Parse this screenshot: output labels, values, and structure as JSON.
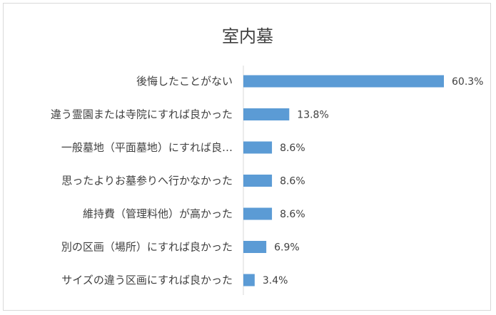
{
  "chart_data": {
    "type": "bar",
    "orientation": "horizontal",
    "title": "室内墓",
    "categories": [
      "後悔したことがない",
      "違う霊園または寺院にすれば良かった",
      "一般墓地（平面墓地）にすれば良…",
      "思ったよりお墓参りへ行かなかった",
      "維持費（管理料他）が高かった",
      "別の区画（場所）にすれば良かった",
      "サイズの違う区画にすれば良かった"
    ],
    "values": [
      60.3,
      13.8,
      8.6,
      8.6,
      8.6,
      6.9,
      3.4
    ],
    "value_labels": [
      "60.3%",
      "13.8%",
      "8.6%",
      "8.6%",
      "8.6%",
      "6.9%",
      "3.4%"
    ],
    "xlabel": "",
    "ylabel": "",
    "xlim": [
      0,
      65
    ],
    "grid": false,
    "legend": "none",
    "bar_color": "#5b9bd5"
  }
}
